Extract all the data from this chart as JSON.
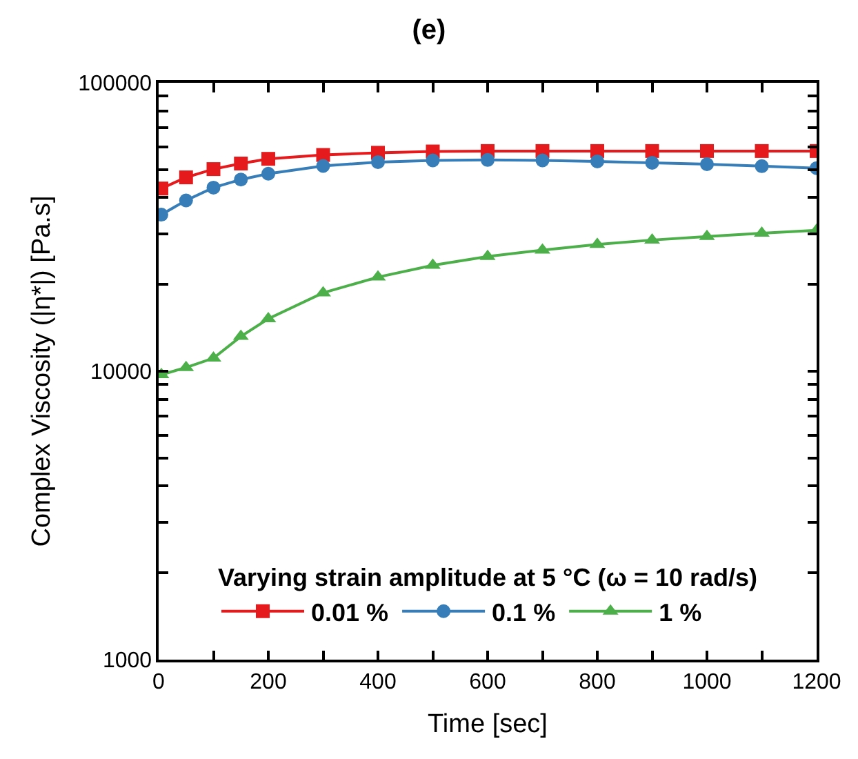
{
  "chart_data": {
    "type": "line",
    "title": "(e)",
    "xlabel": "Time [sec]",
    "ylabel": "Complex Viscosity (|η*|) [Pa.s]",
    "legend_title": "Varying strain amplitude at 5 °C (ω = 10 rad/s)",
    "x": [
      5,
      50,
      100,
      150,
      200,
      300,
      400,
      500,
      600,
      700,
      800,
      900,
      1000,
      1100,
      1200
    ],
    "series": [
      {
        "name": "0.01 %",
        "color": "#e41a1c",
        "marker": "square",
        "values": [
          43000,
          47000,
          50200,
          52500,
          54500,
          56200,
          57200,
          57800,
          58000,
          58000,
          58000,
          58000,
          58000,
          58000,
          58000
        ]
      },
      {
        "name": "0.1 %",
        "color": "#377eb8",
        "marker": "circle",
        "values": [
          34900,
          39100,
          43300,
          46200,
          48400,
          51500,
          53100,
          53800,
          54000,
          53800,
          53400,
          52800,
          52200,
          51400,
          50600
        ]
      },
      {
        "name": "1 %",
        "color": "#4daf4a",
        "marker": "triangle",
        "values": [
          9730,
          10300,
          11100,
          13200,
          15200,
          18700,
          21200,
          23300,
          25000,
          26300,
          27500,
          28500,
          29300,
          30100,
          30800
        ]
      }
    ],
    "log": "y",
    "xlim": [
      0,
      1200
    ],
    "ylim": [
      1000,
      100000
    ],
    "xticks": [
      0,
      {
        "value": 100,
        "label": null
      },
      200,
      {
        "value": 300,
        "label": null
      },
      400,
      {
        "value": 500,
        "label": null
      },
      600,
      {
        "value": 700,
        "label": null
      },
      800,
      {
        "value": 900,
        "label": null
      },
      1000,
      {
        "value": 1100,
        "label": null
      },
      1200
    ],
    "yticks": [
      1000,
      {
        "value": 2000,
        "label": null
      },
      {
        "value": 3000,
        "label": null
      },
      {
        "value": 4000,
        "label": null
      },
      {
        "value": 5000,
        "label": null
      },
      {
        "value": 6000,
        "label": null
      },
      {
        "value": 7000,
        "label": null
      },
      {
        "value": 8000,
        "label": null
      },
      {
        "value": 9000,
        "label": null
      },
      10000,
      {
        "value": 20000,
        "label": null
      },
      {
        "value": 30000,
        "label": null
      },
      {
        "value": 40000,
        "label": null
      },
      {
        "value": 50000,
        "label": null
      },
      {
        "value": 60000,
        "label": null
      },
      {
        "value": 70000,
        "label": null
      },
      {
        "value": 80000,
        "label": null
      },
      {
        "value": 90000,
        "label": null
      },
      100000
    ],
    "legend": "bottom",
    "line_style": "solid"
  }
}
